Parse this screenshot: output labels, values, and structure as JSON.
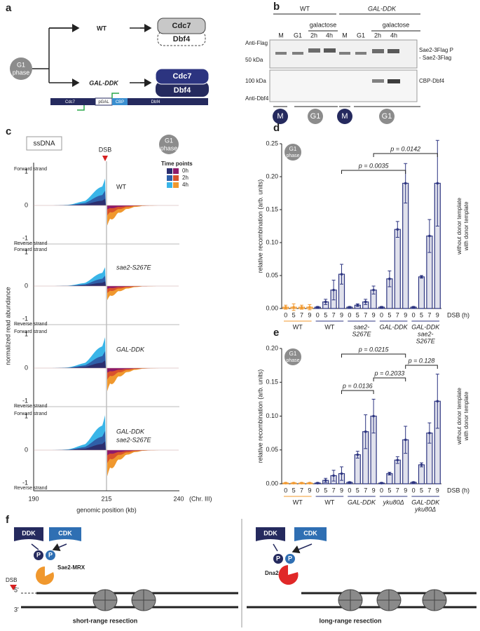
{
  "chart_data": [
    {
      "type": "bar",
      "letter": "d",
      "badge": [
        "G1",
        "phase"
      ],
      "ylabel": "relative recombination (arb. units)",
      "xlabel": "DSB (h)",
      "ylim": [
        0,
        0.25
      ],
      "yticks": [
        {
          "value": 0,
          "label": "0.00"
        },
        {
          "value": 0.05,
          "label": "0.05"
        },
        {
          "value": 0.1,
          "label": "0.10"
        },
        {
          "value": 0.15,
          "label": "0.15"
        },
        {
          "value": 0.2,
          "label": "0.20"
        },
        {
          "value": 0.25,
          "label": "0.25"
        }
      ],
      "categories": [
        "0",
        "5",
        "7",
        "9"
      ],
      "groups": [
        {
          "label": [
            "WT"
          ],
          "color": "#f0982e",
          "values": [
            0.002,
            0.002,
            0.002,
            0.002
          ],
          "errors": [
            0.003,
            0.005,
            0.003,
            0.004
          ]
        },
        {
          "label": [
            "WT"
          ],
          "color": "#2c3480",
          "values": [
            0.002,
            0.01,
            0.028,
            0.052
          ],
          "errors": [
            0.001,
            0.004,
            0.015,
            0.015
          ]
        },
        {
          "label": [
            "sae2-",
            "S267E"
          ],
          "color": "#2c3480",
          "values": [
            0.002,
            0.005,
            0.01,
            0.028
          ],
          "errors": [
            0.001,
            0.002,
            0.004,
            0.006
          ]
        },
        {
          "label": [
            "GAL-DDK"
          ],
          "color": "#2c3480",
          "values": [
            0.002,
            0.045,
            0.12,
            0.19
          ],
          "errors": [
            0.001,
            0.012,
            0.012,
            0.03
          ]
        },
        {
          "label": [
            "GAL-DDK",
            "sae2-",
            "S267E"
          ],
          "color": "#2c3480",
          "values": [
            0.002,
            0.048,
            0.11,
            0.19
          ],
          "errors": [
            0.001,
            0.002,
            0.025,
            0.065
          ]
        }
      ],
      "legend": [
        "without donor template",
        "with donor template"
      ],
      "annotations": [
        "p = 0.0035",
        "p = 0.0142"
      ]
    },
    {
      "type": "bar",
      "letter": "e",
      "badge": [
        "G1",
        "phase"
      ],
      "ylabel": "relative recombination (arb. units)",
      "xlabel": "DSB (h)",
      "ylim": [
        0,
        0.2
      ],
      "yticks": [
        {
          "value": 0,
          "label": "0.00"
        },
        {
          "value": 0.05,
          "label": "0.05"
        },
        {
          "value": 0.1,
          "label": "0.10"
        },
        {
          "value": 0.15,
          "label": "0.15"
        },
        {
          "value": 0.2,
          "label": "0.20"
        }
      ],
      "categories": [
        "0",
        "5",
        "7",
        "9"
      ],
      "groups": [
        {
          "label": [
            "WT"
          ],
          "color": "#f0982e",
          "values": [
            0.001,
            0.001,
            0.001,
            0.001
          ],
          "errors": [
            0.001,
            0.001,
            0.001,
            0.001
          ]
        },
        {
          "label": [
            "WT"
          ],
          "color": "#2c3480",
          "values": [
            0.001,
            0.005,
            0.012,
            0.015
          ],
          "errors": [
            0.001,
            0.003,
            0.008,
            0.01
          ]
        },
        {
          "label": [
            "GAL-DDK"
          ],
          "color": "#2c3480",
          "values": [
            0.002,
            0.043,
            0.077,
            0.1
          ],
          "errors": [
            0.001,
            0.005,
            0.025,
            0.025
          ]
        },
        {
          "label": [
            "yku80Δ"
          ],
          "color": "#2c3480",
          "values": [
            0.001,
            0.015,
            0.035,
            0.065
          ],
          "errors": [
            0.001,
            0.002,
            0.005,
            0.02
          ]
        },
        {
          "label": [
            "GAL-DDK",
            "yku80Δ"
          ],
          "color": "#2c3480",
          "values": [
            0.002,
            0.028,
            0.075,
            0.122
          ],
          "errors": [
            0.001,
            0.003,
            0.015,
            0.04
          ]
        }
      ],
      "legend": [
        "without donor template",
        "with donor template"
      ],
      "annotations": [
        "p = 0.0215",
        "p = 0.0136",
        "p = 0.2033",
        "p = 0.128"
      ]
    }
  ],
  "panel_a": {
    "letter": "a",
    "g1": [
      "G1",
      "phase"
    ],
    "wt": "WT",
    "gal": "GAL-DDK",
    "wt_complex": [
      "Cdc7",
      "Dbf4"
    ],
    "gal_complex": [
      "Cdc7",
      "Dbf4"
    ],
    "construct": [
      "Cdc7",
      "pGAL",
      "CBP",
      "Dbf4"
    ]
  },
  "panel_b": {
    "letter": "b",
    "wt": "WT",
    "gal": "GAL-DDK",
    "galactose": "galactose",
    "lanes": [
      "M",
      "G1",
      "2h",
      "4h",
      "M",
      "G1",
      "2h",
      "4h"
    ],
    "anti_flag": "Anti-Flag",
    "kda50": "50 kDa",
    "sae2p": "Sae2-3Flag P",
    "sae2": "- Sae2-3Flag",
    "kda100": "100 kDa",
    "cbp": "CBP-Dbf4",
    "anti_dbf4": "Anti-Dbf4",
    "phases": [
      "M",
      "G1",
      "M",
      "G1"
    ]
  },
  "panel_c": {
    "letter": "c",
    "box": "ssDNA",
    "dsb": "DSB",
    "g1": [
      "G1",
      "phase"
    ],
    "time_title": "Time points",
    "times": [
      "0h",
      "2h",
      "4h"
    ],
    "tracks": [
      [
        "WT"
      ],
      [
        "sae2-S267E"
      ],
      [
        "GAL-DDK"
      ],
      [
        "GAL-DDK",
        "sae2-S267E"
      ]
    ],
    "forward": "Forward strand",
    "reverse": "Reverse strand",
    "yticks": [
      "1",
      "0",
      "-1"
    ],
    "ylabel": "normalized read abundance",
    "xticks": [
      "190",
      "215",
      "240"
    ],
    "chr": "(Chr. III)",
    "xlabel": "genomic position (kb)"
  },
  "panel_f": {
    "letter": "f",
    "ddk": "DDK",
    "cdk": "CDK",
    "p": "P",
    "sae2mrx": "Sae2-MRX",
    "dsb": "DSB",
    "five": "5'",
    "three": "3'",
    "short": "short-range resection",
    "dna2": "Dna2",
    "long": "long-range resection"
  }
}
